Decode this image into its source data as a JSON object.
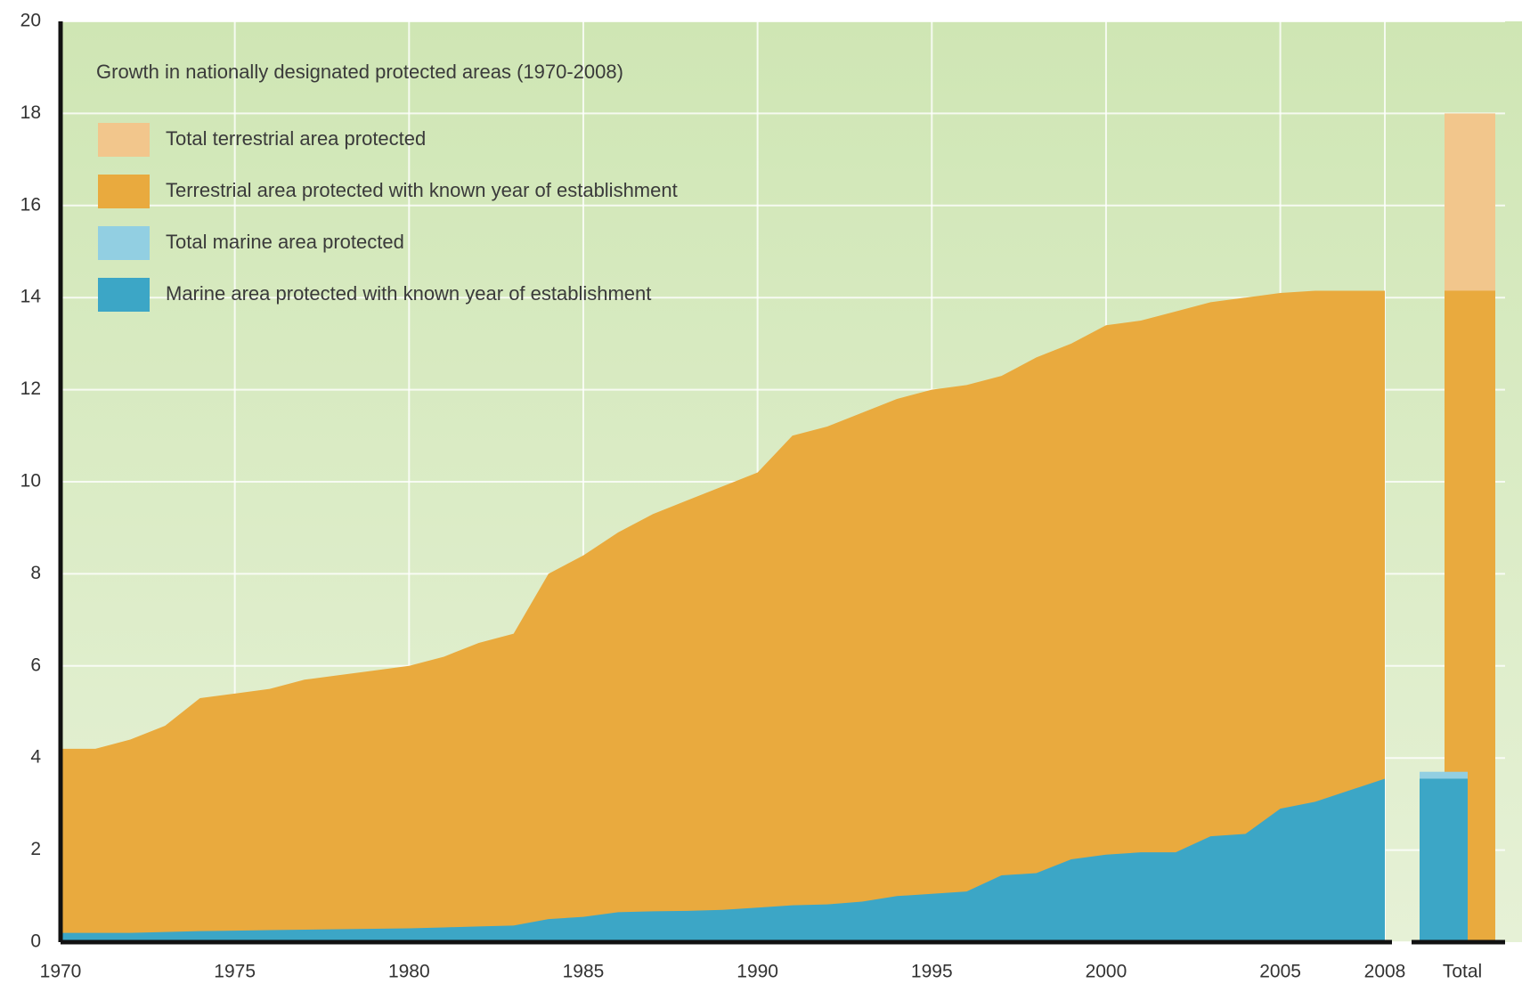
{
  "chart_data": {
    "type": "area",
    "title": "Growth in nationally designated protected areas (1970-2008)",
    "x": [
      1970,
      1971,
      1972,
      1973,
      1974,
      1975,
      1976,
      1977,
      1978,
      1979,
      1980,
      1981,
      1982,
      1983,
      1984,
      1985,
      1986,
      1987,
      1988,
      1989,
      1990,
      1991,
      1992,
      1993,
      1994,
      1995,
      1996,
      1997,
      1998,
      1999,
      2000,
      2001,
      2002,
      2003,
      2004,
      2005,
      2006,
      2007,
      2008
    ],
    "series": [
      {
        "name": "Total terrestrial area protected",
        "color": "#f2c68c",
        "total": 18
      },
      {
        "name": "Terrestrial area protected with known  year of establishment",
        "color": "#e9aa3e",
        "values": [
          4.2,
          4.2,
          4.4,
          4.7,
          5.3,
          5.4,
          5.5,
          5.7,
          5.8,
          5.9,
          6.0,
          6.2,
          6.5,
          6.7,
          8.0,
          8.4,
          8.9,
          9.3,
          9.6,
          9.9,
          10.2,
          11.0,
          11.2,
          11.5,
          11.8,
          12.0,
          12.1,
          12.3,
          12.7,
          13.0,
          13.4,
          13.5,
          13.7,
          13.9,
          14.0,
          14.1,
          14.15,
          14.15,
          14.15
        ]
      },
      {
        "name": "Total marine area protected",
        "color": "#92cfe2",
        "total": 3.7
      },
      {
        "name": "Marine area protected with known year of establishment",
        "color": "#3ca6c6",
        "values": [
          0.2,
          0.2,
          0.2,
          0.22,
          0.24,
          0.25,
          0.26,
          0.27,
          0.28,
          0.29,
          0.3,
          0.32,
          0.34,
          0.36,
          0.5,
          0.55,
          0.65,
          0.67,
          0.68,
          0.7,
          0.75,
          0.8,
          0.82,
          0.88,
          1.0,
          1.05,
          1.1,
          1.45,
          1.5,
          1.8,
          1.9,
          1.95,
          1.95,
          2.3,
          2.35,
          2.9,
          3.05,
          3.3,
          3.55
        ]
      }
    ],
    "total_label": "Total",
    "xlim": [
      1970,
      2008
    ],
    "xticks": [
      1970,
      1975,
      1980,
      1985,
      1990,
      1995,
      2000,
      2005,
      2008
    ],
    "ylim": [
      0,
      20
    ],
    "yticks": [
      0,
      2,
      4,
      6,
      8,
      10,
      12,
      14,
      16,
      18,
      20
    ],
    "grid": true
  }
}
